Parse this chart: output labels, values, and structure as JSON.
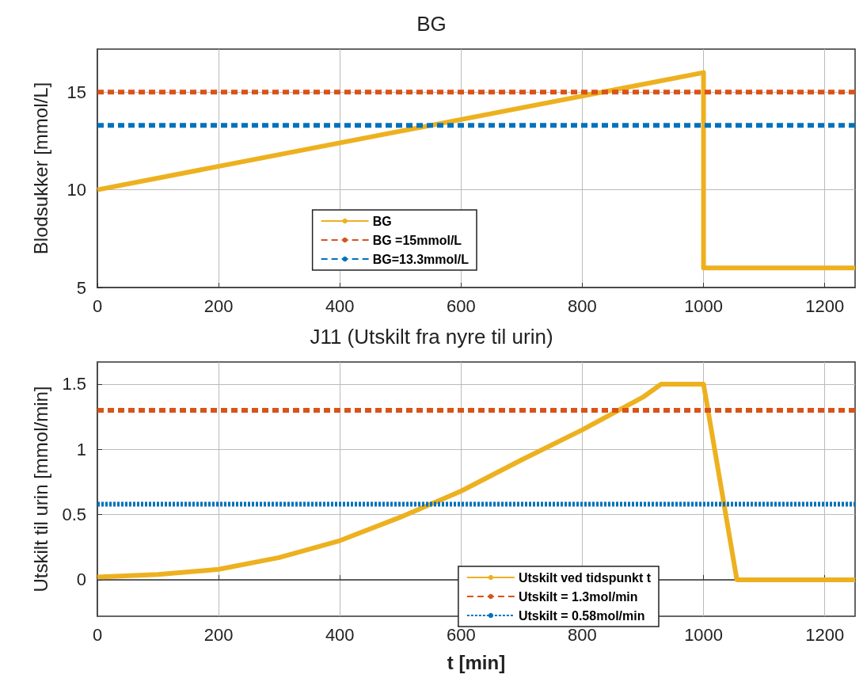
{
  "chart_data": [
    {
      "type": "line",
      "title": "BG",
      "ylabel": "Blodsukker [mmol/L]",
      "xlim": [
        0,
        1250
      ],
      "xticks": [
        0,
        200,
        400,
        600,
        800,
        1000,
        1200
      ],
      "ylim": [
        5,
        17.2
      ],
      "yticks": [
        5,
        10,
        15
      ],
      "grid": true,
      "legend": "bottom",
      "series": [
        {
          "name": "BG",
          "color": "#edb120",
          "x": [
            0,
            1000,
            1000,
            1250
          ],
          "values": [
            10,
            16,
            6,
            6
          ],
          "line_style": "solid"
        },
        {
          "name": "BG =15mmol/L",
          "color": "#d95319",
          "x": [
            0,
            1250
          ],
          "values": [
            15,
            15
          ],
          "line_style": "dashed"
        },
        {
          "name": "BG=13.3mmol/L",
          "color": "#0072bd",
          "x": [
            0,
            1250
          ],
          "values": [
            13.3,
            13.3
          ],
          "line_style": "dashed"
        }
      ]
    },
    {
      "type": "line",
      "title": "J11 (Utskilt fra nyre til urin)",
      "xlabel": "t [min]",
      "ylabel": "Utskilt til urin [mmol/min]",
      "xlim": [
        0,
        1250
      ],
      "xticks": [
        0,
        200,
        400,
        600,
        800,
        1000,
        1200
      ],
      "ylim": [
        -0.28,
        1.67
      ],
      "yticks": [
        0,
        0.5,
        1,
        1.5
      ],
      "grid": true,
      "legend": "bottom right",
      "series": [
        {
          "name": "Utskilt ved tidspunkt t",
          "color": "#edb120",
          "x": [
            0,
            100,
            200,
            300,
            400,
            500,
            600,
            700,
            800,
            900,
            930,
            1000,
            1055,
            1250
          ],
          "values": [
            0.02,
            0.04,
            0.08,
            0.17,
            0.3,
            0.48,
            0.68,
            0.92,
            1.15,
            1.4,
            1.5,
            1.5,
            0,
            0
          ],
          "line_style": "solid"
        },
        {
          "name": "Utskilt = 1.3mol/min",
          "color": "#d95319",
          "x": [
            0,
            1250
          ],
          "values": [
            1.3,
            1.3
          ],
          "line_style": "dashed"
        },
        {
          "name": "Utskilt = 0.58mol/min",
          "color": "#0072bd",
          "x": [
            0,
            1250
          ],
          "values": [
            0.58,
            0.58
          ],
          "line_style": "dotted"
        }
      ]
    }
  ]
}
